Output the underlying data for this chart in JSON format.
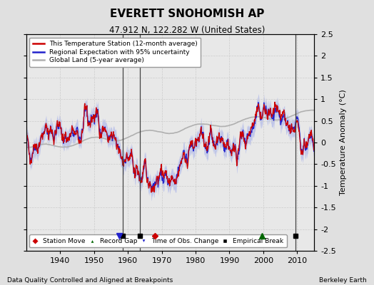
{
  "title": "EVERETT SNOHOMISH AP",
  "subtitle": "47.912 N, 122.282 W (United States)",
  "ylabel": "Temperature Anomaly (°C)",
  "footer_left": "Data Quality Controlled and Aligned at Breakpoints",
  "footer_right": "Berkeley Earth",
  "xlim": [
    1930,
    2015
  ],
  "ylim": [
    -2.5,
    2.5
  ],
  "yticks": [
    -2.5,
    -2,
    -1.5,
    -1,
    -0.5,
    0,
    0.5,
    1,
    1.5,
    2,
    2.5
  ],
  "ytick_labels": [
    "-2.5",
    "-2",
    "-1.5",
    "-1",
    "-0.5",
    "0",
    "0.5",
    "1",
    "1.5",
    "2",
    "2.5"
  ],
  "xticks": [
    1940,
    1950,
    1960,
    1970,
    1980,
    1990,
    2000,
    2010
  ],
  "bg_color": "#e0e0e0",
  "plot_bg_color": "#e8e8e8",
  "station_moves": [
    1968.0
  ],
  "record_gaps": [
    1999.5
  ],
  "time_obs_changes": [
    1957.5
  ],
  "empirical_breaks": [
    1958.5,
    1963.5,
    2009.5
  ],
  "vert_lines": [
    1958.5,
    1963.5,
    2009.5
  ],
  "marker_y": -2.15,
  "seed": 42
}
